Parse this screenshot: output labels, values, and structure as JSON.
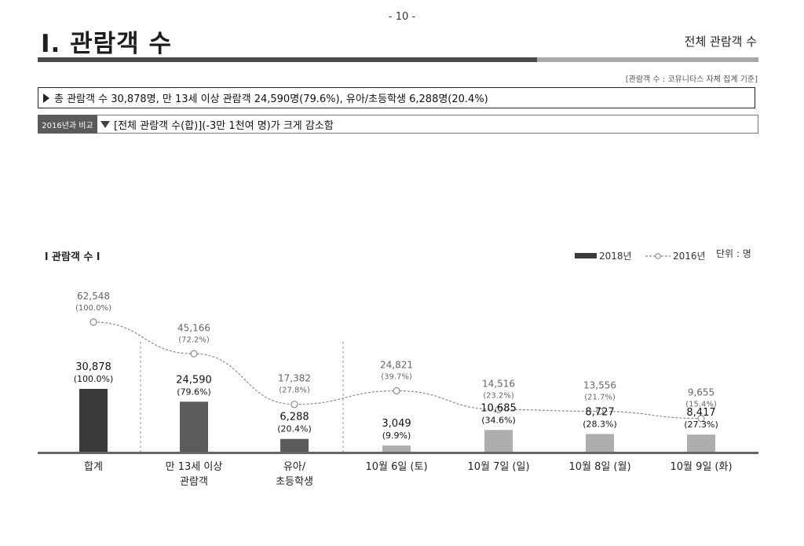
{
  "page_number": "- 10 -",
  "title": "Ⅰ. 관람객 수",
  "section_label": "전체 관람객 수",
  "source_note": "[관람객 수 : 코뮤니타스 자체 집계 기준]",
  "summary": "총 관람객 수 30,878명, 만 13세 이상 관람객 24,590명(79.6%), 유아/초등학생 6,288명(20.4%)",
  "comparison": {
    "tag": "2016년과 비교",
    "text": "[전체 관람객 수(합)](-3만 1천여 명)가 크게 감소함"
  },
  "colors": {
    "bar_total": "#3a3a3a",
    "bar_group": "#5c5c5c",
    "bar_day": "#b0aeac",
    "line_2016": "#8a8a8a",
    "axis": "#666666"
  },
  "chart_data": {
    "type": "bar",
    "title": "관람객 수",
    "unit_label": "단위 : 명",
    "legend": [
      "2018년",
      "2016년"
    ],
    "legend_position": "top-right",
    "categories": [
      "합계",
      "만 13세 이상\n관람객",
      "유아/\n초등학생",
      "10월 6일 (토)",
      "10월 7일 (일)",
      "10월 8일 (월)",
      "10월 9일 (화)"
    ],
    "series": [
      {
        "name": "2018년",
        "kind": "bar",
        "values": [
          30878,
          24590,
          6288,
          3049,
          10685,
          8727,
          8417
        ],
        "labels": [
          "30,878",
          "24,590",
          "6,288",
          "3,049",
          "10,685",
          "8,727",
          "8,417"
        ],
        "percent_labels": [
          "(100.0%)",
          "(79.6%)",
          "(20.4%)",
          "(9.9%)",
          "(34.6%)",
          "(28.3%)",
          "(27.3%)"
        ]
      },
      {
        "name": "2016년",
        "kind": "line",
        "values": [
          62548,
          45166,
          17382,
          24821,
          14516,
          13556,
          9655
        ],
        "labels": [
          "62,548",
          "45,166",
          "17,382",
          "24,821",
          "14,516",
          "13,556",
          "9,655"
        ],
        "percent_labels": [
          "(100.0%)",
          "(72.2%)",
          "(27.8%)",
          "(39.7%)",
          "(23.2%)",
          "(21.7%)",
          "(15.4%)"
        ]
      }
    ]
  }
}
